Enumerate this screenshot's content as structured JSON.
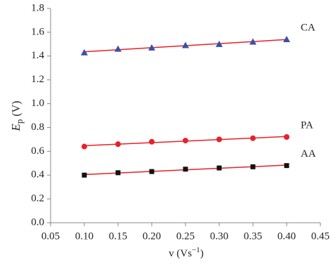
{
  "chart_data": {
    "type": "scatter",
    "x_label": {
      "text": "v (Vs",
      "superscript": "−1",
      "close": ")"
    },
    "y_label": {
      "symbol": "E",
      "subscript": "p",
      "unit": "(V)"
    },
    "x": [
      0.1,
      0.15,
      0.2,
      0.25,
      0.3,
      0.35,
      0.4
    ],
    "series": [
      {
        "name": "CA",
        "color": "#3b4fa3",
        "marker": "triangle",
        "values": [
          1.43,
          1.46,
          1.47,
          1.49,
          1.5,
          1.52,
          1.54
        ]
      },
      {
        "name": "PA",
        "color": "#e8202a",
        "marker": "circle",
        "values": [
          0.64,
          0.66,
          0.68,
          0.69,
          0.7,
          0.71,
          0.72
        ]
      },
      {
        "name": "AA",
        "color": "#111111",
        "marker": "square",
        "values": [
          0.4,
          0.42,
          0.43,
          0.45,
          0.46,
          0.47,
          0.48
        ]
      }
    ],
    "trendline_color": "#e8202a",
    "xlim": [
      0.05,
      0.45
    ],
    "xticks": [
      0.05,
      {
        "value": 0.1,
        "label": "0.10"
      },
      0.15,
      {
        "value": 0.2,
        "label": "0.20"
      },
      0.25,
      {
        "value": 0.3,
        "label": "0.30"
      },
      0.35,
      {
        "value": 0.4,
        "label": "0.40"
      },
      0.45
    ],
    "ylim": [
      0,
      1.8
    ],
    "yticks": [
      {
        "value": 0,
        "label": "0.0"
      },
      0.2,
      0.4,
      0.6,
      0.8,
      {
        "value": 1,
        "label": "1.0"
      },
      1.2,
      1.4,
      1.6,
      1.8
    ],
    "grid": false
  }
}
